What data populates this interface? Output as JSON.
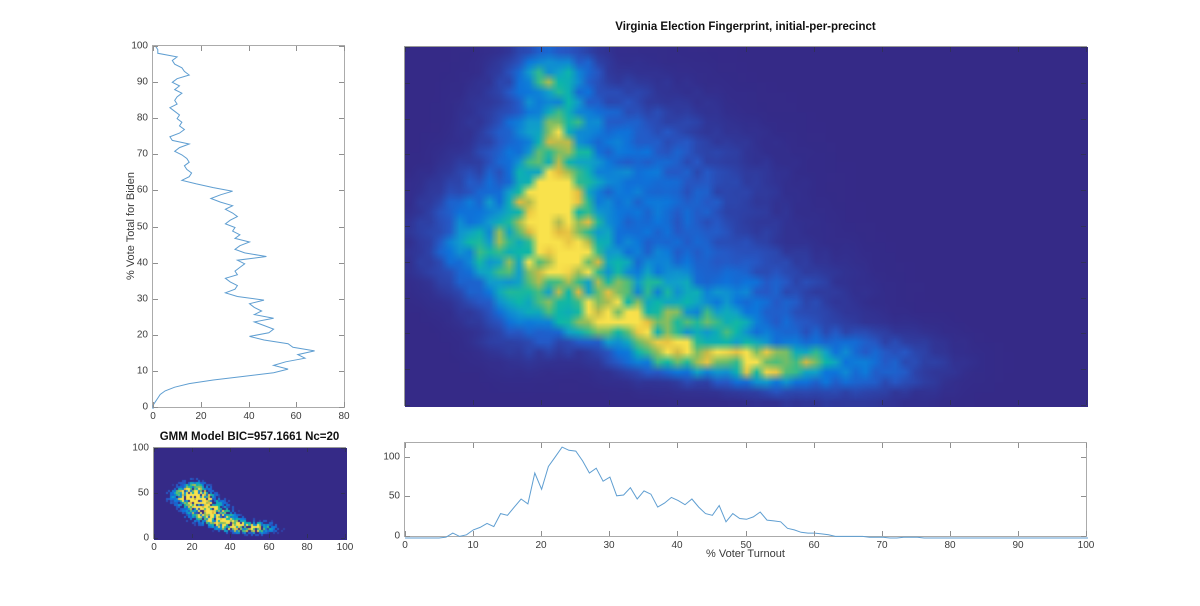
{
  "figure": {
    "background": "#ffffff",
    "line_color": "#5f9ed1",
    "box_color": "#ababab",
    "tick_color": "#8f8f8f",
    "heatmap_tick_color": "#30305a",
    "text_color": "#3c3c3c",
    "title_color": "#111111"
  },
  "colormap_parula": [
    [
      0.0,
      "#352a87"
    ],
    [
      0.15,
      "#2758c5"
    ],
    [
      0.3,
      "#0d75dc"
    ],
    [
      0.45,
      "#119fcb"
    ],
    [
      0.58,
      "#0cb7a9"
    ],
    [
      0.7,
      "#51bd78"
    ],
    [
      0.8,
      "#9fbe56"
    ],
    [
      0.9,
      "#e0b83f"
    ],
    [
      1.0,
      "#f9e24c"
    ]
  ],
  "chart_data": [
    {
      "id": "biden_vote_histogram",
      "type": "line",
      "orientation": "vertical",
      "title": "",
      "xlabel": "",
      "ylabel": "% Vote Total for Biden",
      "xlim": [
        0,
        80
      ],
      "ylim": [
        0,
        100
      ],
      "x_ticks": [
        0,
        20,
        40,
        60,
        80
      ],
      "y_ticks": [
        0,
        10,
        20,
        30,
        40,
        50,
        60,
        70,
        80,
        90,
        100
      ],
      "y_values_note": "counts[i] is precinct count at vote-share i percent, i = 0..100",
      "counts": [
        0,
        0,
        1,
        2,
        3,
        5,
        9,
        15,
        25,
        38,
        50,
        56,
        50,
        55,
        63,
        60,
        67,
        58,
        56,
        46,
        40,
        48,
        50,
        46,
        42,
        50,
        42,
        45,
        42,
        40,
        46,
        35,
        30,
        34,
        35,
        32,
        30,
        35,
        34,
        36,
        38,
        35,
        47,
        38,
        34,
        36,
        40,
        34,
        36,
        33,
        34,
        30,
        32,
        35,
        33,
        30,
        33,
        28,
        24,
        28,
        33,
        25,
        18,
        12,
        15,
        16,
        14,
        13,
        15,
        14,
        12,
        9,
        11,
        15,
        8,
        7,
        11,
        13,
        11,
        12,
        10,
        11,
        9,
        7,
        10,
        9,
        10,
        12,
        9,
        11,
        8,
        10,
        15,
        13,
        12,
        9,
        8,
        10,
        2,
        2,
        1
      ]
    },
    {
      "id": "fingerprint_heatmap",
      "type": "heatmap",
      "title": "Virginia Election Fingerprint, initial-per-precinct",
      "xlabel": "",
      "ylabel": "",
      "xlim": [
        0,
        100
      ],
      "ylim": [
        0,
        100
      ],
      "x_ticks": [
        0,
        10,
        20,
        30,
        40,
        50,
        60,
        70,
        80,
        90,
        100
      ],
      "y_ticks": [
        0,
        10,
        20,
        30,
        40,
        50,
        60,
        70,
        80,
        90,
        100
      ],
      "grid": [
        69,
        36
      ],
      "noise": 0.45,
      "speckle": false,
      "smooth": true,
      "seed": 11,
      "blobs_note": "each blob = [turnout_center, vote_center, sigma_t, sigma_v, amplitude]",
      "blobs": [
        [
          22,
          50,
          3.5,
          6,
          1.0
        ],
        [
          20.5,
          58,
          2.5,
          4,
          0.8
        ],
        [
          24.5,
          44,
          3,
          4,
          0.75
        ],
        [
          29,
          25,
          4,
          3,
          0.8
        ],
        [
          34,
          22,
          3.5,
          3,
          0.55
        ],
        [
          41,
          15,
          4.5,
          3,
          0.8
        ],
        [
          51,
          12,
          4,
          2.8,
          0.7
        ],
        [
          22,
          92,
          3,
          4,
          0.5
        ],
        [
          22,
          79,
          3,
          5,
          0.38
        ],
        [
          22,
          66,
          3,
          6,
          0.45
        ],
        [
          21,
          72,
          5,
          12,
          0.22
        ],
        [
          12,
          50,
          4.5,
          8,
          0.28
        ],
        [
          15,
          42,
          5,
          6,
          0.35
        ],
        [
          26,
          33,
          5,
          6,
          0.5
        ],
        [
          36,
          30,
          6,
          8,
          0.28
        ],
        [
          45,
          22,
          6,
          6,
          0.3
        ],
        [
          57,
          13,
          5,
          4,
          0.35
        ],
        [
          64,
          12,
          7,
          5,
          0.2
        ],
        [
          35,
          55,
          9,
          12,
          0.16
        ],
        [
          30,
          72,
          7,
          10,
          0.12
        ],
        [
          18,
          32,
          4,
          8,
          0.3
        ],
        [
          48,
          30,
          8,
          8,
          0.14
        ]
      ]
    },
    {
      "id": "gmm_model_heatmap",
      "type": "heatmap",
      "title": "GMM Model BIC=957.1661 Nc=20",
      "xlabel": "",
      "ylabel": "",
      "xlim": [
        0,
        100
      ],
      "ylim": [
        0,
        100
      ],
      "x_ticks": [
        0,
        20,
        40,
        60,
        80,
        100
      ],
      "y_ticks": [
        0,
        50,
        100
      ],
      "grid": [
        96,
        46
      ],
      "noise": 1.2,
      "speckle": true,
      "smooth": false,
      "seed": 29,
      "blobs": [
        [
          21,
          50,
          4,
          7,
          0.9
        ],
        [
          25,
          42,
          4,
          6,
          0.7
        ],
        [
          30,
          30,
          5,
          6,
          0.6
        ],
        [
          35,
          22,
          5,
          4,
          0.8
        ],
        [
          41,
          16,
          5,
          3.5,
          0.9
        ],
        [
          48,
          13,
          5,
          3,
          0.7
        ],
        [
          55,
          13,
          5,
          4,
          0.35
        ],
        [
          15,
          48,
          4,
          6,
          0.45
        ],
        [
          27,
          33,
          6,
          7,
          0.5
        ]
      ]
    },
    {
      "id": "turnout_histogram",
      "type": "line",
      "orientation": "horizontal",
      "title": "",
      "xlabel": "% Voter Turnout",
      "ylabel": "",
      "xlim": [
        0,
        100
      ],
      "ylim": [
        0,
        117
      ],
      "x_ticks": [
        0,
        10,
        20,
        30,
        40,
        50,
        60,
        70,
        80,
        90,
        100
      ],
      "y_ticks": [
        0,
        50,
        100
      ],
      "x_values_note": "counts[i] is precinct count at turnout i percent, i = 0..100",
      "counts": [
        0,
        0,
        0,
        0,
        0,
        0,
        1,
        6,
        2,
        4,
        10,
        13,
        18,
        14,
        30,
        28,
        38,
        48,
        42,
        80,
        60,
        88,
        100,
        112,
        108,
        107,
        95,
        80,
        86,
        70,
        75,
        52,
        53,
        62,
        48,
        58,
        54,
        38,
        43,
        50,
        46,
        41,
        48,
        38,
        30,
        28,
        40,
        20,
        30,
        24,
        23,
        26,
        32,
        22,
        21,
        20,
        12,
        10,
        7,
        6,
        6,
        5,
        4,
        2,
        2,
        2,
        2,
        2,
        1,
        1,
        1,
        0,
        0,
        1,
        1,
        1,
        0,
        0,
        0,
        0,
        0,
        0,
        0,
        0,
        0,
        0,
        0,
        0,
        0,
        0,
        0,
        0,
        0,
        0,
        0,
        0,
        0,
        0,
        0,
        0,
        0
      ]
    }
  ]
}
